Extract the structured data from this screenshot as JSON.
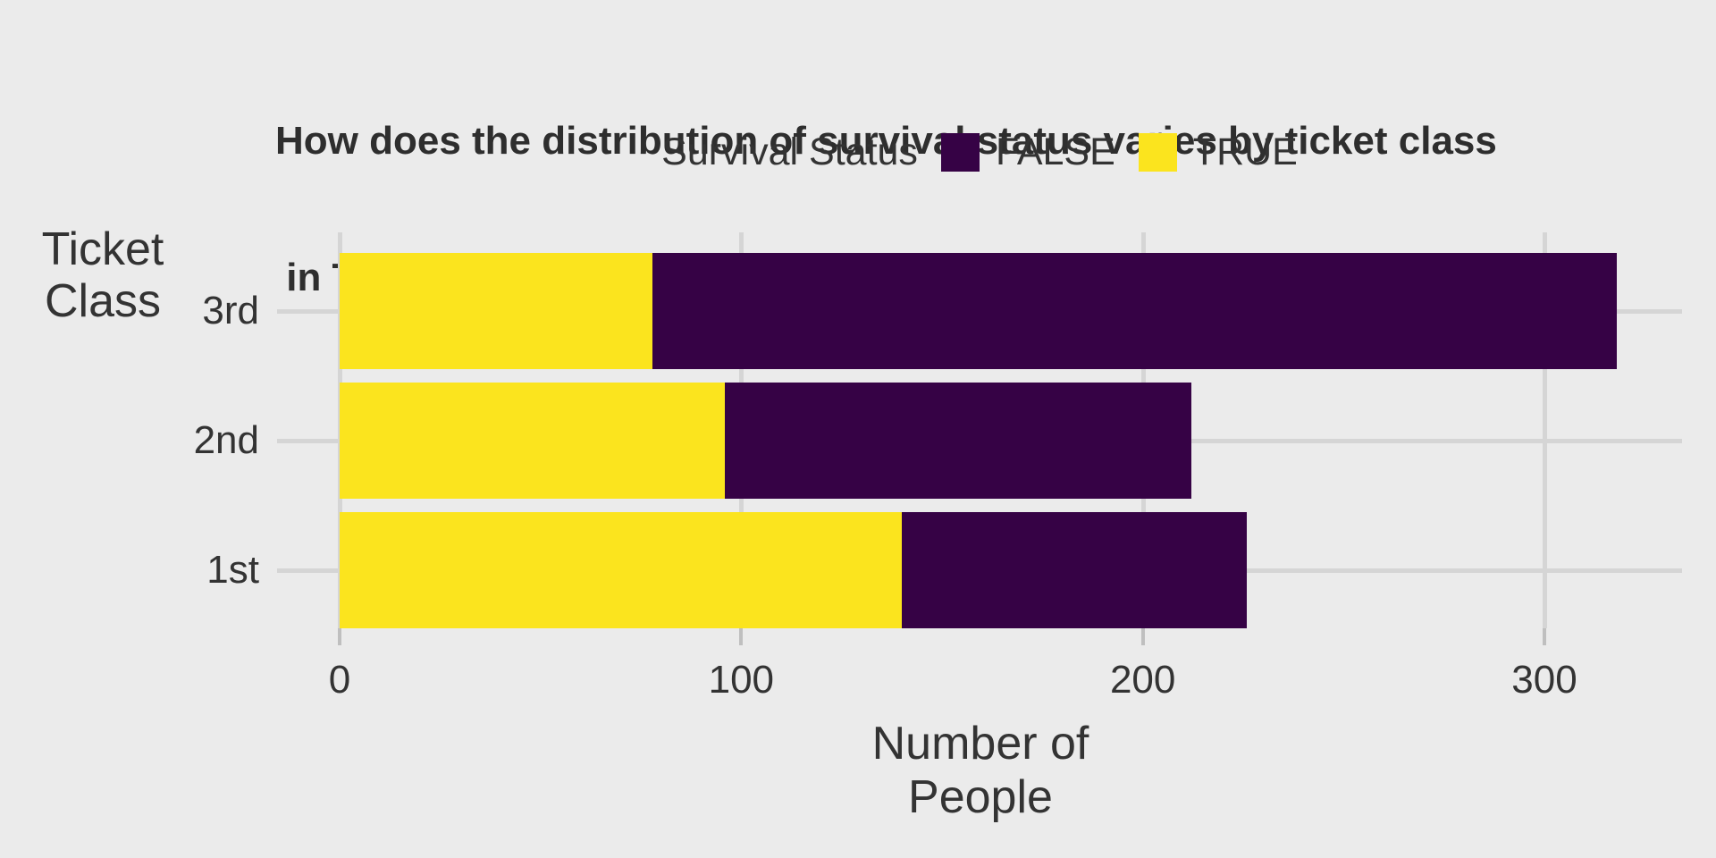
{
  "title": {
    "line1": "How does the distribution of survival status varies by ticket class",
    "line2": " in Titanic?"
  },
  "legend": {
    "title": "Survival Status",
    "items": [
      {
        "label": "FALSE",
        "color": "#360245"
      },
      {
        "label": "TRUE",
        "color": "#FBE41E"
      }
    ]
  },
  "y_axis": {
    "title_line1": "Ticket",
    "title_line2": "Class",
    "categories_top_to_bottom": [
      "3rd",
      "2nd",
      "1st"
    ]
  },
  "x_axis": {
    "title_line1": "Number of",
    "title_line2": "People",
    "ticks": [
      0,
      100,
      200,
      300
    ]
  },
  "chart_data": {
    "type": "bar",
    "orientation": "horizontal",
    "stacked": true,
    "title": "How does the distribution of survival status varies by ticket class in Titanic?",
    "xlabel": "Number of People",
    "ylabel": "Ticket Class",
    "legend_title": "Survival Status",
    "legend_position": "top",
    "categories": [
      "3rd",
      "2nd",
      "1st"
    ],
    "series": [
      {
        "name": "FALSE",
        "color": "#360245",
        "values": [
          240,
          116,
          86
        ]
      },
      {
        "name": "TRUE",
        "color": "#FBE41E",
        "values": [
          78,
          96,
          140
        ]
      }
    ],
    "stack_order": [
      "TRUE",
      "FALSE"
    ],
    "totals": [
      318,
      212,
      226
    ],
    "xlim": [
      0,
      336
    ],
    "xticks": [
      0,
      100,
      200,
      300
    ],
    "grid": true,
    "background_color": "#EBEBEB",
    "gridline_color": "#D5D5D5"
  }
}
